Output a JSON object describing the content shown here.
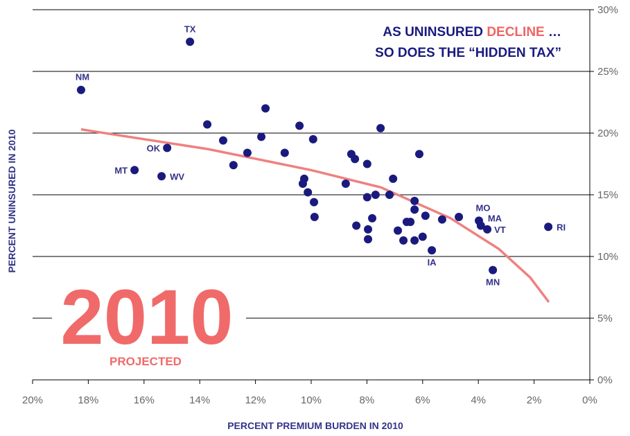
{
  "chart_data": {
    "type": "scatter",
    "title": [
      "AS UNINSURED ",
      "DECLINE",
      " …"
    ],
    "title_colors": [
      "#1a1a80",
      "#f06464",
      "#1a1a80"
    ],
    "subtitle": "SO DOES THE “HIDDEN TAX”",
    "annotation": "2010",
    "annotation_sub": "PROJECTED",
    "annotation_color": "#f06a6a",
    "x_label": "PERCENT PREMIUM BURDEN IN 2010",
    "y_label": "PERCENT UNINSURED IN 2010",
    "xlim": [
      20,
      0
    ],
    "ylim": [
      0,
      30
    ],
    "xticks": [
      {
        "value": 20,
        "label": "20%"
      },
      {
        "value": 18,
        "label": "18%"
      },
      {
        "value": 16,
        "label": "16%"
      },
      {
        "value": 14,
        "label": "14%"
      },
      {
        "value": 12,
        "label": "12%"
      },
      {
        "value": 10,
        "label": "10%"
      },
      {
        "value": 8,
        "label": "8%"
      },
      {
        "value": 6,
        "label": "6%"
      },
      {
        "value": 4,
        "label": "4%"
      },
      {
        "value": 2,
        "label": "2%"
      },
      {
        "value": 0,
        "label": "0%"
      }
    ],
    "yticks": [
      {
        "value": 0,
        "label": "0%"
      },
      {
        "value": 5,
        "label": "5%"
      },
      {
        "value": 10,
        "label": "10%"
      },
      {
        "value": 15,
        "label": "15%"
      },
      {
        "value": 20,
        "label": "20%"
      },
      {
        "value": 25,
        "label": "25%"
      },
      {
        "value": 30,
        "label": "30%"
      }
    ],
    "grid": true,
    "series": [
      {
        "color": "#1a1a7e",
        "x": [
          14.35,
          18.26,
          11.64,
          13.73,
          10.42,
          7.51,
          11.79,
          13.16,
          9.93,
          15.17,
          12.29,
          10.95,
          8.56,
          6.12,
          8.43,
          7.99,
          12.79,
          16.34,
          15.37,
          7.06,
          10.25,
          10.3,
          8.76,
          10.12,
          7.19,
          7.69,
          7.99,
          6.29,
          9.9,
          6.29,
          5.9,
          5.3,
          4.7,
          9.88,
          7.81,
          6.44,
          6.57,
          3.98,
          3.91,
          3.68,
          1.49,
          8.38,
          7.96,
          6.89,
          7.96,
          6.69,
          6.29,
          6.0,
          5.67,
          3.48
        ],
        "values": [
          27.4,
          23.5,
          22.0,
          20.7,
          20.6,
          20.4,
          19.7,
          19.4,
          19.5,
          18.8,
          18.4,
          18.4,
          18.3,
          18.3,
          17.9,
          17.5,
          17.4,
          17.0,
          16.5,
          16.3,
          16.3,
          15.9,
          15.9,
          15.2,
          15.0,
          15.0,
          14.8,
          14.5,
          14.4,
          13.8,
          13.3,
          13.0,
          13.2,
          13.2,
          13.1,
          12.8,
          12.8,
          12.9,
          12.5,
          12.2,
          12.4,
          12.5,
          12.2,
          12.1,
          11.4,
          11.3,
          11.3,
          11.6,
          10.5,
          8.9
        ],
        "labels": [
          "TX",
          "NM",
          null,
          null,
          null,
          null,
          null,
          null,
          null,
          "OK",
          null,
          null,
          null,
          null,
          null,
          null,
          null,
          "MT",
          "WV",
          null,
          null,
          null,
          null,
          null,
          null,
          null,
          null,
          null,
          null,
          null,
          null,
          null,
          null,
          null,
          null,
          null,
          null,
          "MO",
          "MA",
          "VT",
          "RI",
          null,
          null,
          null,
          null,
          null,
          null,
          null,
          "IA",
          "MN"
        ]
      }
    ],
    "trend": {
      "type": "line",
      "color": "#f08080",
      "x": [
        18.26,
        13.7,
        10.0,
        7.5,
        5.0,
        3.26,
        2.14,
        1.47
      ],
      "values": [
        20.3,
        18.7,
        17.0,
        15.6,
        13.1,
        10.6,
        8.3,
        6.3
      ]
    }
  }
}
